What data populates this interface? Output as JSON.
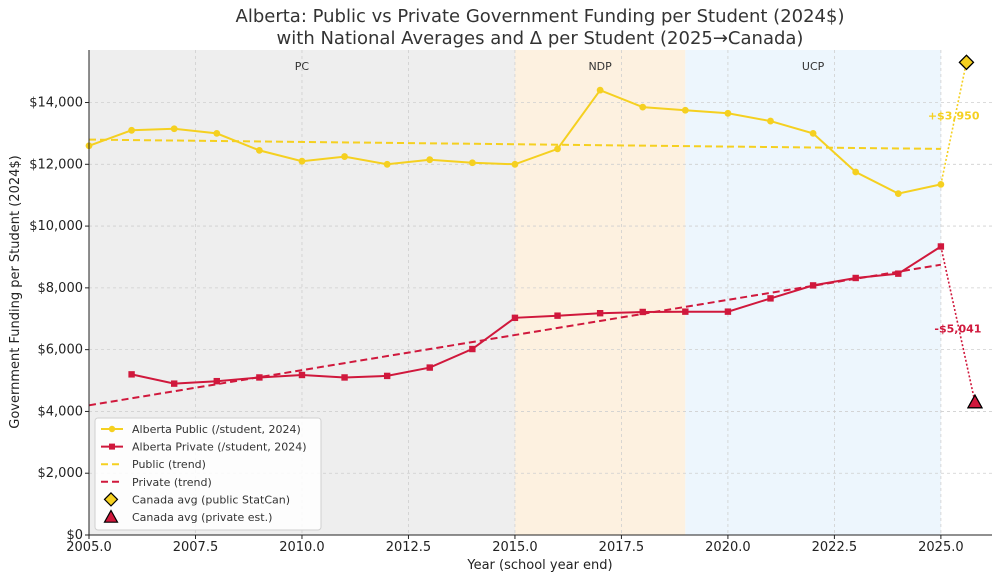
{
  "chart_data": {
    "type": "line",
    "title_line1": "Alberta: Public vs Private Government Funding per Student (2024$)",
    "title_line2": "with National Averages and Δ per Student (2025→Canada)",
    "xlabel": "Year (school year end)",
    "ylabel": "Government Funding per Student (2024$)",
    "xlim": [
      2005,
      2026.2
    ],
    "ylim": [
      0,
      15700
    ],
    "x_ticks": [
      2005,
      2007.5,
      2010,
      2012.5,
      2015,
      2017.5,
      2020,
      2022.5,
      2025
    ],
    "x_tick_labels": [
      "2005.0",
      "2007.5",
      "2010.0",
      "2012.5",
      "2015.0",
      "2017.5",
      "2020.0",
      "2022.5",
      "2025.0"
    ],
    "y_ticks": [
      0,
      2000,
      4000,
      6000,
      8000,
      10000,
      12000,
      14000
    ],
    "y_tick_labels": [
      "$0",
      "$2,000",
      "$4,000",
      "$6,000",
      "$8,000",
      "$10,000",
      "$12,000",
      "$14,000"
    ],
    "grid": true,
    "legend_position": "bottom-left",
    "eras": [
      {
        "label": "PC",
        "start": 2005,
        "end": 2015,
        "color": "#eeeeee"
      },
      {
        "label": "NDP",
        "start": 2015,
        "end": 2019,
        "color": "#fdf1e0"
      },
      {
        "label": "UCP",
        "start": 2019,
        "end": 2025,
        "color": "#edf6fd"
      }
    ],
    "series": [
      {
        "name": "Alberta Public (/student, 2024)",
        "color": "#f5d020",
        "marker": "circle",
        "x": [
          2005,
          2006,
          2007,
          2008,
          2009,
          2010,
          2011,
          2012,
          2013,
          2014,
          2015,
          2016,
          2017,
          2018,
          2019,
          2020,
          2021,
          2022,
          2023,
          2024,
          2025
        ],
        "values": [
          12600,
          13100,
          13150,
          13000,
          12450,
          12100,
          12250,
          12000,
          12150,
          12050,
          12000,
          12500,
          14400,
          13850,
          13750,
          13650,
          13400,
          13000,
          11750,
          11050,
          11350
        ]
      },
      {
        "name": "Alberta Private (/student, 2024)",
        "color": "#d0183c",
        "marker": "square",
        "x": [
          2006,
          2007,
          2008,
          2009,
          2010,
          2011,
          2012,
          2013,
          2014,
          2015,
          2016,
          2017,
          2018,
          2019,
          2020,
          2021,
          2022,
          2023,
          2024,
          2025
        ],
        "values": [
          5200,
          4900,
          4980,
          5100,
          5180,
          5100,
          5150,
          5420,
          6020,
          7030,
          7100,
          7180,
          7220,
          7230,
          7230,
          7660,
          8080,
          8320,
          8460,
          9340
        ]
      },
      {
        "name": "Public (trend)",
        "color": "#f5d020",
        "style": "dashed",
        "x": [
          2005,
          2025
        ],
        "values": [
          12800,
          12500
        ]
      },
      {
        "name": "Private (trend)",
        "color": "#d0183c",
        "style": "dashed",
        "x": [
          2005,
          2025
        ],
        "values": [
          4200,
          8750
        ]
      },
      {
        "name": "Canada avg (public StatCan)",
        "color": "#f5d020",
        "marker": "diamond",
        "x": [
          2025.6
        ],
        "values": [
          15300
        ]
      },
      {
        "name": "Canada avg (private est.)",
        "color": "#d0183c",
        "marker": "triangle",
        "x": [
          2025.8
        ],
        "values": [
          4300
        ]
      }
    ],
    "annotations": [
      {
        "text": "+$3,950",
        "x": 2025.3,
        "y": 13450,
        "color": "#f5d020"
      },
      {
        "text": "-$5,041",
        "x": 2025.4,
        "y": 6550,
        "color": "#d0183c"
      }
    ]
  }
}
